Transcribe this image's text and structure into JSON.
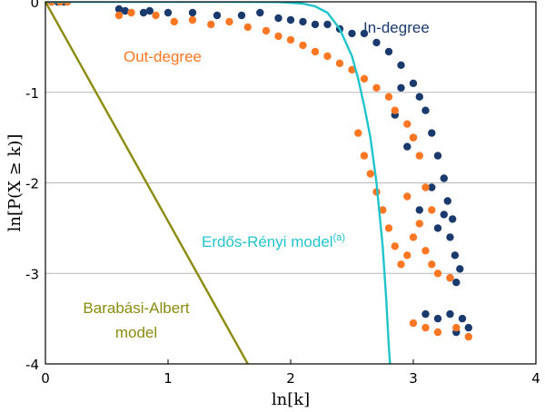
{
  "chart_data": {
    "type": "scatter",
    "xlabel": "ln[k]",
    "ylabel": "ln[P(X ≥ k)]",
    "xlim": [
      0,
      4
    ],
    "ylim": [
      -4,
      0
    ],
    "x_ticks": [
      "0",
      "1",
      "2",
      "3",
      "4"
    ],
    "y_ticks": [
      "0",
      "-1",
      "-2",
      "-3",
      "-4"
    ],
    "grid": "horizontal",
    "series": [
      {
        "name": "In-degree",
        "kind": "scatter",
        "color": "#1a3a6e",
        "points": [
          [
            0.05,
            0.0
          ],
          [
            0.1,
            0.0
          ],
          [
            0.15,
            0.0
          ],
          [
            0.6,
            -0.08
          ],
          [
            0.65,
            -0.1
          ],
          [
            0.8,
            -0.12
          ],
          [
            0.85,
            -0.1
          ],
          [
            1.0,
            -0.12
          ],
          [
            1.2,
            -0.12
          ],
          [
            1.4,
            -0.15
          ],
          [
            1.6,
            -0.15
          ],
          [
            1.75,
            -0.12
          ],
          [
            1.9,
            -0.18
          ],
          [
            2.0,
            -0.2
          ],
          [
            2.1,
            -0.22
          ],
          [
            2.2,
            -0.25
          ],
          [
            2.3,
            -0.25
          ],
          [
            2.4,
            -0.3
          ],
          [
            2.5,
            -0.35
          ],
          [
            2.6,
            -0.35
          ],
          [
            2.7,
            -0.45
          ],
          [
            2.8,
            -0.55
          ],
          [
            2.9,
            -0.7
          ],
          [
            3.0,
            -0.9
          ],
          [
            3.05,
            -1.05
          ],
          [
            3.1,
            -1.2
          ],
          [
            3.15,
            -1.45
          ],
          [
            3.2,
            -1.7
          ],
          [
            3.25,
            -1.95
          ],
          [
            3.28,
            -2.2
          ],
          [
            3.32,
            -2.4
          ],
          [
            3.3,
            -2.6
          ],
          [
            3.34,
            -2.8
          ],
          [
            3.38,
            -2.95
          ],
          [
            3.3,
            -3.05
          ],
          [
            3.35,
            -3.1
          ],
          [
            3.25,
            -2.35
          ],
          [
            3.2,
            -2.5
          ],
          [
            3.05,
            -2.3
          ],
          [
            2.95,
            -1.6
          ],
          [
            3.1,
            -3.45
          ],
          [
            3.2,
            -3.5
          ],
          [
            3.3,
            -3.45
          ],
          [
            3.4,
            -3.5
          ],
          [
            3.45,
            -3.6
          ],
          [
            3.35,
            -3.65
          ],
          [
            2.9,
            -0.95
          ],
          [
            2.85,
            -1.25
          ],
          [
            3.0,
            -1.5
          ],
          [
            3.15,
            -2.05
          ]
        ]
      },
      {
        "name": "Out-degree",
        "kind": "scatter",
        "color": "#ff7722",
        "points": [
          [
            0.0,
            0.0
          ],
          [
            0.05,
            0.0
          ],
          [
            0.12,
            0.0
          ],
          [
            0.18,
            0.0
          ],
          [
            0.6,
            -0.15
          ],
          [
            0.7,
            -0.12
          ],
          [
            0.9,
            -0.15
          ],
          [
            1.05,
            -0.22
          ],
          [
            1.2,
            -0.2
          ],
          [
            1.35,
            -0.25
          ],
          [
            1.5,
            -0.22
          ],
          [
            1.65,
            -0.28
          ],
          [
            1.8,
            -0.32
          ],
          [
            1.9,
            -0.38
          ],
          [
            2.0,
            -0.42
          ],
          [
            2.1,
            -0.48
          ],
          [
            2.2,
            -0.55
          ],
          [
            2.3,
            -0.6
          ],
          [
            2.4,
            -0.68
          ],
          [
            2.5,
            -0.75
          ],
          [
            2.6,
            -0.85
          ],
          [
            2.7,
            -0.95
          ],
          [
            2.8,
            -1.05
          ],
          [
            2.85,
            -1.2
          ],
          [
            2.95,
            -1.35
          ],
          [
            3.0,
            -1.5
          ],
          [
            3.05,
            -1.7
          ],
          [
            2.55,
            -1.45
          ],
          [
            2.6,
            -1.7
          ],
          [
            2.65,
            -1.9
          ],
          [
            2.7,
            -2.1
          ],
          [
            2.75,
            -2.3
          ],
          [
            2.8,
            -2.5
          ],
          [
            2.85,
            -2.7
          ],
          [
            2.9,
            -2.9
          ],
          [
            2.95,
            -2.8
          ],
          [
            3.0,
            -2.6
          ],
          [
            3.05,
            -2.45
          ],
          [
            3.15,
            -2.9
          ],
          [
            3.2,
            -3.0
          ],
          [
            3.3,
            -3.05
          ],
          [
            3.1,
            -2.75
          ],
          [
            2.95,
            -2.15
          ],
          [
            3.1,
            -2.05
          ],
          [
            3.15,
            -2.3
          ],
          [
            3.0,
            -3.55
          ],
          [
            3.1,
            -3.6
          ],
          [
            3.2,
            -3.65
          ],
          [
            3.35,
            -3.6
          ],
          [
            3.45,
            -3.7
          ]
        ]
      },
      {
        "name": "Erdős-Rényi model",
        "name_sup": "(a)",
        "kind": "line",
        "color": "#22c4cc",
        "points": [
          [
            0.0,
            0.0
          ],
          [
            1.5,
            0.0
          ],
          [
            1.9,
            -0.003
          ],
          [
            2.0,
            -0.01
          ],
          [
            2.1,
            -0.02
          ],
          [
            2.2,
            -0.05
          ],
          [
            2.3,
            -0.12
          ],
          [
            2.4,
            -0.3
          ],
          [
            2.5,
            -0.6
          ],
          [
            2.55,
            -0.85
          ],
          [
            2.6,
            -1.15
          ],
          [
            2.65,
            -1.5
          ],
          [
            2.7,
            -2.0
          ],
          [
            2.75,
            -2.7
          ],
          [
            2.78,
            -3.3
          ],
          [
            2.8,
            -3.8
          ],
          [
            2.81,
            -4.0
          ]
        ]
      },
      {
        "name": "Barabási-Albert model",
        "kind": "line",
        "color": "#8b8b10",
        "points": [
          [
            0.0,
            0.0
          ],
          [
            1.65,
            -4.0
          ]
        ]
      }
    ],
    "annotations": [
      {
        "text": "In-degree",
        "series": 0
      },
      {
        "text": "Out-degree",
        "series": 1
      },
      {
        "text": "Erdős-Rényi model",
        "sup": "(a)",
        "series": 2
      },
      {
        "text": "Barabási-Albert",
        "text2": "model",
        "series": 3
      }
    ]
  }
}
